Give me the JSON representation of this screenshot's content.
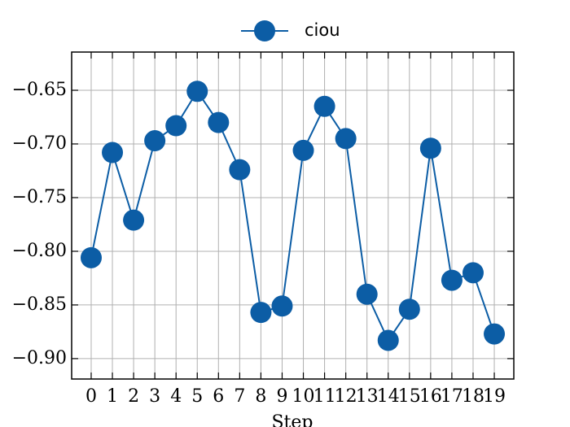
{
  "chart_data": {
    "type": "line",
    "xlabel": "Step",
    "x": [
      0,
      1,
      2,
      3,
      4,
      5,
      6,
      7,
      8,
      9,
      10,
      11,
      12,
      13,
      14,
      15,
      16,
      17,
      18,
      19
    ],
    "series": [
      {
        "name": "ciou",
        "color": "#0C5DA5",
        "values": [
          -0.806,
          -0.708,
          -0.771,
          -0.697,
          -0.683,
          -0.651,
          -0.68,
          -0.724,
          -0.857,
          -0.851,
          -0.706,
          -0.665,
          -0.695,
          -0.84,
          -0.883,
          -0.854,
          -0.704,
          -0.827,
          -0.82,
          -0.877
        ]
      }
    ],
    "xlim": [
      -0.92,
      19.92
    ],
    "xticks": [
      0,
      1,
      2,
      3,
      4,
      5,
      6,
      7,
      8,
      9,
      10,
      11,
      12,
      13,
      14,
      15,
      16,
      17,
      18,
      19
    ],
    "ylim": [
      -0.919,
      -0.6144
    ],
    "yticks": [
      {
        "value": -0.9,
        "label": "−0.90"
      },
      {
        "value": -0.85,
        "label": "−0.85"
      },
      {
        "value": -0.8,
        "label": "−0.80"
      },
      {
        "value": -0.75,
        "label": "−0.75"
      },
      {
        "value": -0.7,
        "label": "−0.70"
      },
      {
        "value": -0.65,
        "label": "−0.65"
      }
    ],
    "grid": true,
    "legend": "top"
  }
}
